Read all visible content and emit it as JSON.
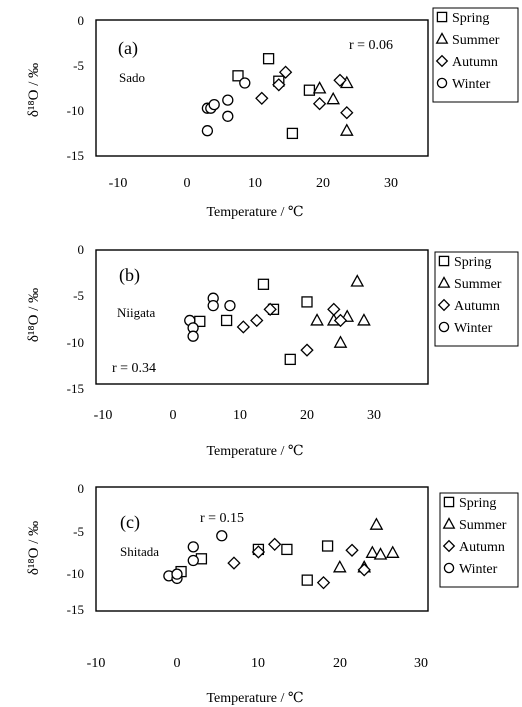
{
  "chart_data": [
    {
      "type": "scatter",
      "panel_label": "(a)",
      "site": "Sado",
      "r_text": "r = 0.06",
      "xlabel": "Temperature / ℃",
      "ylabel": "δ¹⁸O / ‰",
      "xlim": [
        -10,
        30
      ],
      "ylim": [
        -15,
        0
      ],
      "x_ticks": [
        "-10",
        "0",
        "10",
        "20",
        "30"
      ],
      "y_ticks": [
        "0",
        "-5",
        "-10",
        "-15"
      ],
      "grid": false,
      "legend_position": "right",
      "series": [
        {
          "name": "Spring",
          "marker": "square",
          "points": [
            [
              7.5,
              -6.2
            ],
            [
              12,
              -4.3
            ],
            [
              13.5,
              -6.8
            ],
            [
              15.5,
              -12.6
            ],
            [
              18,
              -7.8
            ]
          ]
        },
        {
          "name": "Summer",
          "marker": "triangle",
          "points": [
            [
              19.5,
              -7.6
            ],
            [
              21.5,
              -8.8
            ],
            [
              23.5,
              -7.0
            ],
            [
              23.5,
              -12.3
            ]
          ]
        },
        {
          "name": "Autumn",
          "marker": "diamond",
          "points": [
            [
              11,
              -8.7
            ],
            [
              14.5,
              -5.8
            ],
            [
              13.5,
              -7.2
            ],
            [
              19.5,
              -9.3
            ],
            [
              22.5,
              -6.7
            ],
            [
              23.5,
              -10.3
            ]
          ]
        },
        {
          "name": "Winter",
          "marker": "circle",
          "points": [
            [
              3,
              -9.8
            ],
            [
              3.5,
              -9.8
            ],
            [
              4,
              -9.4
            ],
            [
              3,
              -12.3
            ],
            [
              6,
              -8.9
            ],
            [
              6,
              -10.7
            ],
            [
              8.5,
              -7.0
            ]
          ]
        }
      ]
    },
    {
      "type": "scatter",
      "panel_label": "(b)",
      "site": "Niigata",
      "r_text": "r = 0.34",
      "xlabel": "Temperature / ℃",
      "ylabel": "δ¹⁸O / ‰",
      "xlim": [
        -10,
        30
      ],
      "ylim": [
        -15,
        0
      ],
      "x_ticks": [
        "-10",
        "0",
        "10",
        "20",
        "30"
      ],
      "y_ticks": [
        "0",
        "-5",
        "-10",
        "-15"
      ],
      "grid": false,
      "legend_position": "right",
      "series": [
        {
          "name": "Spring",
          "marker": "square",
          "points": [
            [
              4,
              -7.7
            ],
            [
              8,
              -7.6
            ],
            [
              13.5,
              -3.7
            ],
            [
              15,
              -6.4
            ],
            [
              17.5,
              -11.8
            ],
            [
              20,
              -5.6
            ]
          ]
        },
        {
          "name": "Summer",
          "marker": "triangle",
          "points": [
            [
              21.5,
              -7.6
            ],
            [
              24,
              -7.6
            ],
            [
              25,
              -10.0
            ],
            [
              26,
              -7.2
            ],
            [
              27.5,
              -3.4
            ],
            [
              28.5,
              -7.6
            ]
          ]
        },
        {
          "name": "Autumn",
          "marker": "diamond",
          "points": [
            [
              10.5,
              -8.3
            ],
            [
              12.5,
              -7.6
            ],
            [
              14.5,
              -6.4
            ],
            [
              20,
              -10.8
            ],
            [
              24,
              -6.4
            ],
            [
              25,
              -7.6
            ]
          ]
        },
        {
          "name": "Winter",
          "marker": "circle",
          "points": [
            [
              2.5,
              -7.6
            ],
            [
              3,
              -8.4
            ],
            [
              3,
              -9.3
            ],
            [
              6,
              -5.2
            ],
            [
              6,
              -6.0
            ],
            [
              8.5,
              -6.0
            ]
          ]
        }
      ]
    },
    {
      "type": "scatter",
      "panel_label": "(c)",
      "site": "Shitada",
      "r_text": "r = 0.15",
      "xlabel": "Temperature / ℃",
      "ylabel": "δ¹⁸O / ‰",
      "xlim": [
        -10,
        30
      ],
      "ylim": [
        -15,
        0
      ],
      "x_ticks": [
        "-10",
        "0",
        "10",
        "20",
        "30"
      ],
      "y_ticks": [
        "0",
        "-5",
        "-10",
        "-15"
      ],
      "grid": false,
      "legend_position": "right",
      "series": [
        {
          "name": "Spring",
          "marker": "square",
          "points": [
            [
              0.5,
              -9.8
            ],
            [
              3,
              -8.3
            ],
            [
              10,
              -7.2
            ],
            [
              13.5,
              -7.2
            ],
            [
              16,
              -10.8
            ],
            [
              18.5,
              -6.8
            ]
          ]
        },
        {
          "name": "Summer",
          "marker": "triangle",
          "points": [
            [
              20,
              -9.3
            ],
            [
              23,
              -9.3
            ],
            [
              24,
              -7.6
            ],
            [
              24.5,
              -4.3
            ],
            [
              25,
              -7.8
            ],
            [
              26.5,
              -7.6
            ]
          ]
        },
        {
          "name": "Autumn",
          "marker": "diamond",
          "points": [
            [
              7,
              -8.8
            ],
            [
              10,
              -7.5
            ],
            [
              12,
              -6.6
            ],
            [
              18,
              -11.1
            ],
            [
              21.5,
              -7.3
            ],
            [
              23,
              -9.6
            ]
          ]
        },
        {
          "name": "Winter",
          "marker": "circle",
          "points": [
            [
              -1,
              -10.3
            ],
            [
              0,
              -10.6
            ],
            [
              0,
              -10.1
            ],
            [
              2,
              -8.5
            ],
            [
              2,
              -6.9
            ],
            [
              5.5,
              -5.6
            ]
          ]
        }
      ]
    }
  ]
}
